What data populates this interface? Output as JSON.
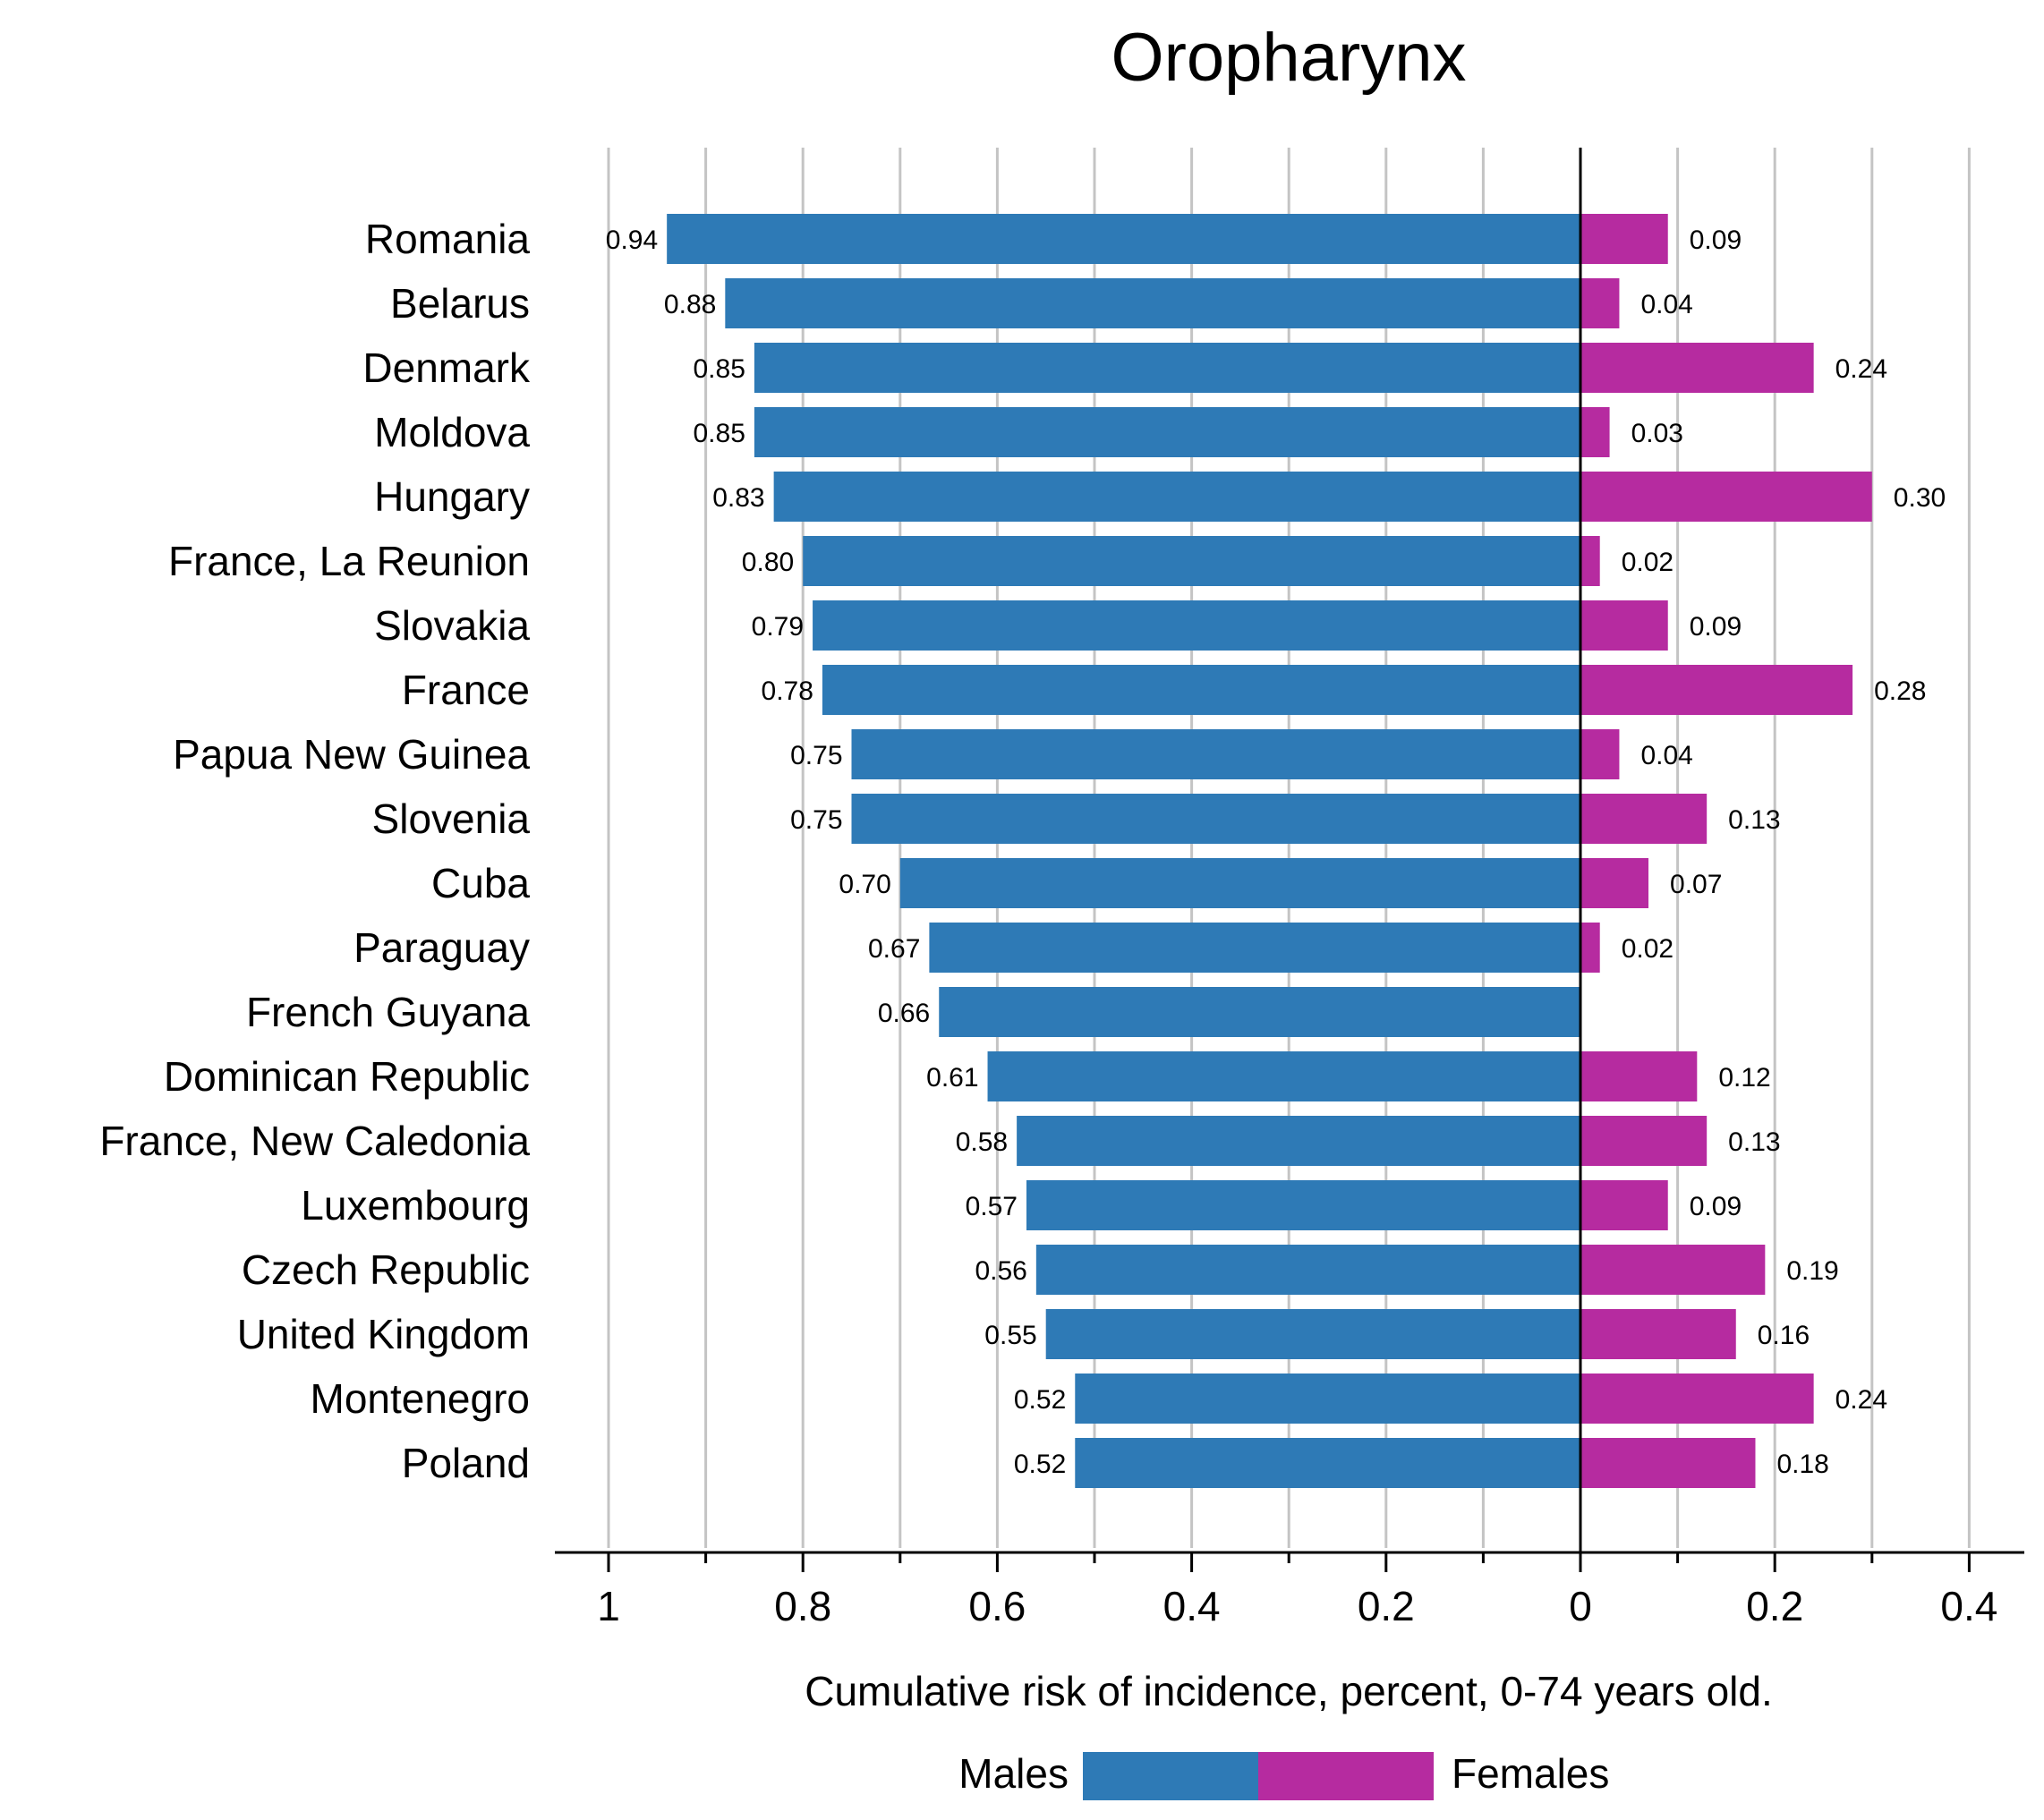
{
  "chart_data": {
    "type": "bar",
    "title": "Oropharynx",
    "xlabel": "Cumulative risk of incidence, percent, 0-74 years old.",
    "ylabel": "",
    "categories": [
      "Romania",
      "Belarus",
      "Denmark",
      "Moldova",
      "Hungary",
      "France, La Reunion",
      "Slovakia",
      "France",
      "Papua New Guinea",
      "Slovenia",
      "Cuba",
      "Paraguay",
      "French Guyana",
      "Dominican Republic",
      "France, New Caledonia",
      "Luxembourg",
      "Czech Republic",
      "United Kingdom",
      "Montenegro",
      "Poland"
    ],
    "series": [
      {
        "name": "Males",
        "color": "#2e7ab6",
        "values": [
          0.94,
          0.88,
          0.85,
          0.85,
          0.83,
          0.8,
          0.79,
          0.78,
          0.75,
          0.75,
          0.7,
          0.67,
          0.66,
          0.61,
          0.58,
          0.57,
          0.56,
          0.55,
          0.52,
          0.52
        ],
        "labels": [
          "0.94",
          "0.88",
          "0.85",
          "0.85",
          "0.83",
          "0.80",
          "0.79",
          "0.78",
          "0.75",
          "0.75",
          "0.70",
          "0.67",
          "0.66",
          "0.61",
          "0.58",
          "0.57",
          "0.56",
          "0.55",
          "0.52",
          "0.52"
        ]
      },
      {
        "name": "Females",
        "color": "#b62ba0",
        "values": [
          0.09,
          0.04,
          0.24,
          0.03,
          0.3,
          0.02,
          0.09,
          0.28,
          0.04,
          0.13,
          0.07,
          0.02,
          null,
          0.12,
          0.13,
          0.09,
          0.19,
          0.16,
          0.24,
          0.18
        ],
        "labels": [
          "0.09",
          "0.04",
          "0.24",
          "0.03",
          "0.30",
          "0.02",
          "0.09",
          "0.28",
          "0.04",
          "0.13",
          "0.07",
          "0.02",
          "",
          "0.12",
          "0.13",
          "0.09",
          "0.19",
          "0.16",
          "0.24",
          "0.18"
        ]
      }
    ],
    "xlim_males": [
      0,
      1
    ],
    "xlim_females": [
      0,
      0.4
    ],
    "major_ticks": [
      {
        "side": "males",
        "value": 1,
        "label": "1"
      },
      {
        "side": "males",
        "value": 0.8,
        "label": "0.8"
      },
      {
        "side": "males",
        "value": 0.6,
        "label": "0.6"
      },
      {
        "side": "males",
        "value": 0.4,
        "label": "0.4"
      },
      {
        "side": "males",
        "value": 0.2,
        "label": "0.2"
      },
      {
        "side": "center",
        "value": 0,
        "label": "0"
      },
      {
        "side": "females",
        "value": 0.2,
        "label": "0.2"
      },
      {
        "side": "females",
        "value": 0.4,
        "label": "0.4"
      }
    ],
    "minor_ticks": [
      {
        "side": "males",
        "value": 0.9
      },
      {
        "side": "males",
        "value": 0.7
      },
      {
        "side": "males",
        "value": 0.5
      },
      {
        "side": "males",
        "value": 0.3
      },
      {
        "side": "males",
        "value": 0.1
      },
      {
        "side": "females",
        "value": 0.1
      },
      {
        "side": "females",
        "value": 0.3
      }
    ],
    "grid": true,
    "legend": {
      "position": "bottom-center",
      "left_label": "Males",
      "right_label": "Females"
    }
  }
}
